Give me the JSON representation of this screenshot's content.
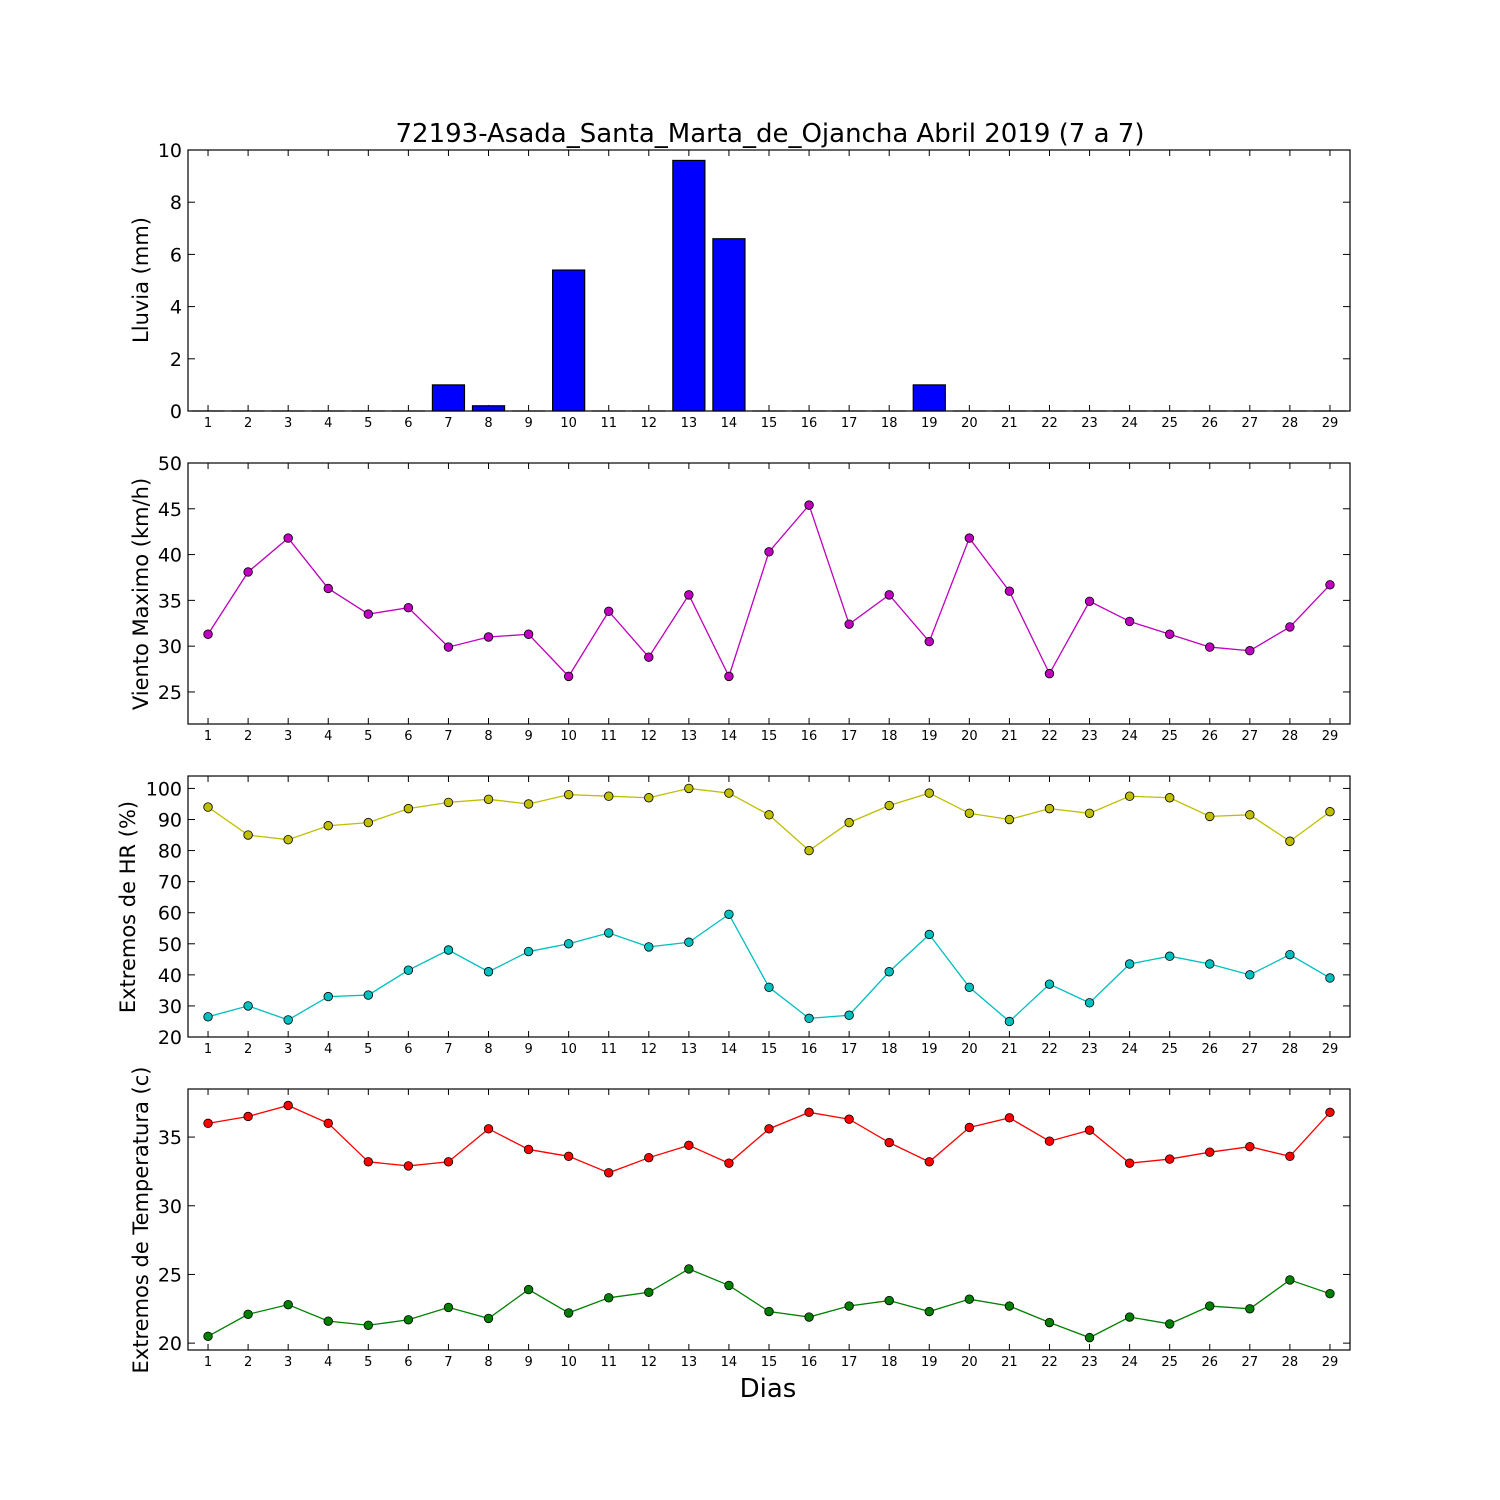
{
  "figure": {
    "title": "72193-Asada_Santa_Marta_de_Ojancha Abril 2019  (7 a 7)",
    "xlabel": "Dias"
  },
  "chart_data": [
    {
      "type": "bar",
      "ylabel": "Lluvia (mm)",
      "x": [
        1,
        2,
        3,
        4,
        5,
        6,
        7,
        8,
        9,
        10,
        11,
        12,
        13,
        14,
        15,
        16,
        17,
        18,
        19,
        20,
        21,
        22,
        23,
        24,
        25,
        26,
        27,
        28,
        29
      ],
      "ylim": [
        0,
        10
      ],
      "yticks": [
        0,
        2,
        4,
        6,
        8,
        10
      ],
      "series": [
        {
          "color": "#0000ff",
          "values": [
            0,
            0,
            0,
            0,
            0,
            0,
            1.0,
            0.2,
            0,
            5.4,
            0,
            0,
            9.6,
            6.6,
            0,
            0,
            0,
            0,
            1.0,
            0,
            0,
            0,
            0,
            0,
            0,
            0,
            0,
            0,
            0
          ]
        }
      ]
    },
    {
      "type": "line",
      "ylabel": "Viento Maximo (km/h)",
      "x": [
        1,
        2,
        3,
        4,
        5,
        6,
        7,
        8,
        9,
        10,
        11,
        12,
        13,
        14,
        15,
        16,
        17,
        18,
        19,
        20,
        21,
        22,
        23,
        24,
        25,
        26,
        27,
        28,
        29
      ],
      "ylim": [
        21.5,
        50
      ],
      "yticks": [
        25,
        30,
        35,
        40,
        45,
        50
      ],
      "series": [
        {
          "color": "#bf00bf",
          "values": [
            31.3,
            38.1,
            41.8,
            36.3,
            33.5,
            34.2,
            29.9,
            31.0,
            31.3,
            26.7,
            33.8,
            28.8,
            35.6,
            26.7,
            40.3,
            45.4,
            32.4,
            35.6,
            30.5,
            41.8,
            36.0,
            27.0,
            34.9,
            32.7,
            31.3,
            29.9,
            29.5,
            32.1,
            36.7
          ]
        }
      ]
    },
    {
      "type": "line",
      "ylabel": "Extremos de HR (%)",
      "x": [
        1,
        2,
        3,
        4,
        5,
        6,
        7,
        8,
        9,
        10,
        11,
        12,
        13,
        14,
        15,
        16,
        17,
        18,
        19,
        20,
        21,
        22,
        23,
        24,
        25,
        26,
        27,
        28,
        29
      ],
      "ylim": [
        20,
        104
      ],
      "yticks": [
        20,
        30,
        40,
        50,
        60,
        70,
        80,
        90,
        100
      ],
      "series": [
        {
          "color": "#bfbf00",
          "values": [
            94,
            85,
            83.5,
            88,
            89,
            93.5,
            95.5,
            96.5,
            95,
            98,
            97.5,
            97,
            100,
            98.5,
            91.5,
            80,
            89,
            94.5,
            98.5,
            92,
            90,
            93.5,
            92,
            97.5,
            97,
            91,
            91.5,
            83,
            92.5
          ]
        },
        {
          "color": "#00bfbf",
          "values": [
            26.5,
            30,
            25.5,
            33,
            33.5,
            41.5,
            48,
            41,
            47.5,
            50,
            53.5,
            49,
            50.5,
            59.5,
            36,
            26,
            27,
            41,
            53,
            36,
            25,
            37,
            31,
            43.5,
            46,
            43.5,
            40,
            46.5,
            39
          ]
        }
      ]
    },
    {
      "type": "line",
      "ylabel": "Extremos de Temperatura (c)",
      "x": [
        1,
        2,
        3,
        4,
        5,
        6,
        7,
        8,
        9,
        10,
        11,
        12,
        13,
        14,
        15,
        16,
        17,
        18,
        19,
        20,
        21,
        22,
        23,
        24,
        25,
        26,
        27,
        28,
        29
      ],
      "ylim": [
        19.5,
        38.5
      ],
      "yticks": [
        20,
        25,
        30,
        35
      ],
      "series": [
        {
          "color": "#ff0000",
          "values": [
            36.0,
            36.5,
            37.3,
            36.0,
            33.2,
            32.9,
            33.2,
            35.6,
            34.1,
            33.6,
            32.4,
            33.5,
            34.4,
            33.1,
            35.6,
            36.8,
            36.3,
            34.6,
            33.2,
            35.7,
            36.4,
            34.7,
            35.5,
            33.1,
            33.4,
            33.9,
            34.3,
            33.6,
            36.8
          ]
        },
        {
          "color": "#008000",
          "values": [
            20.5,
            22.1,
            22.8,
            21.6,
            21.3,
            21.7,
            22.6,
            21.8,
            23.9,
            22.2,
            23.3,
            23.7,
            25.4,
            24.2,
            22.3,
            21.9,
            22.7,
            23.1,
            22.3,
            23.2,
            22.7,
            21.5,
            20.4,
            21.9,
            21.4,
            22.7,
            22.5,
            24.6,
            23.6
          ]
        }
      ]
    }
  ]
}
